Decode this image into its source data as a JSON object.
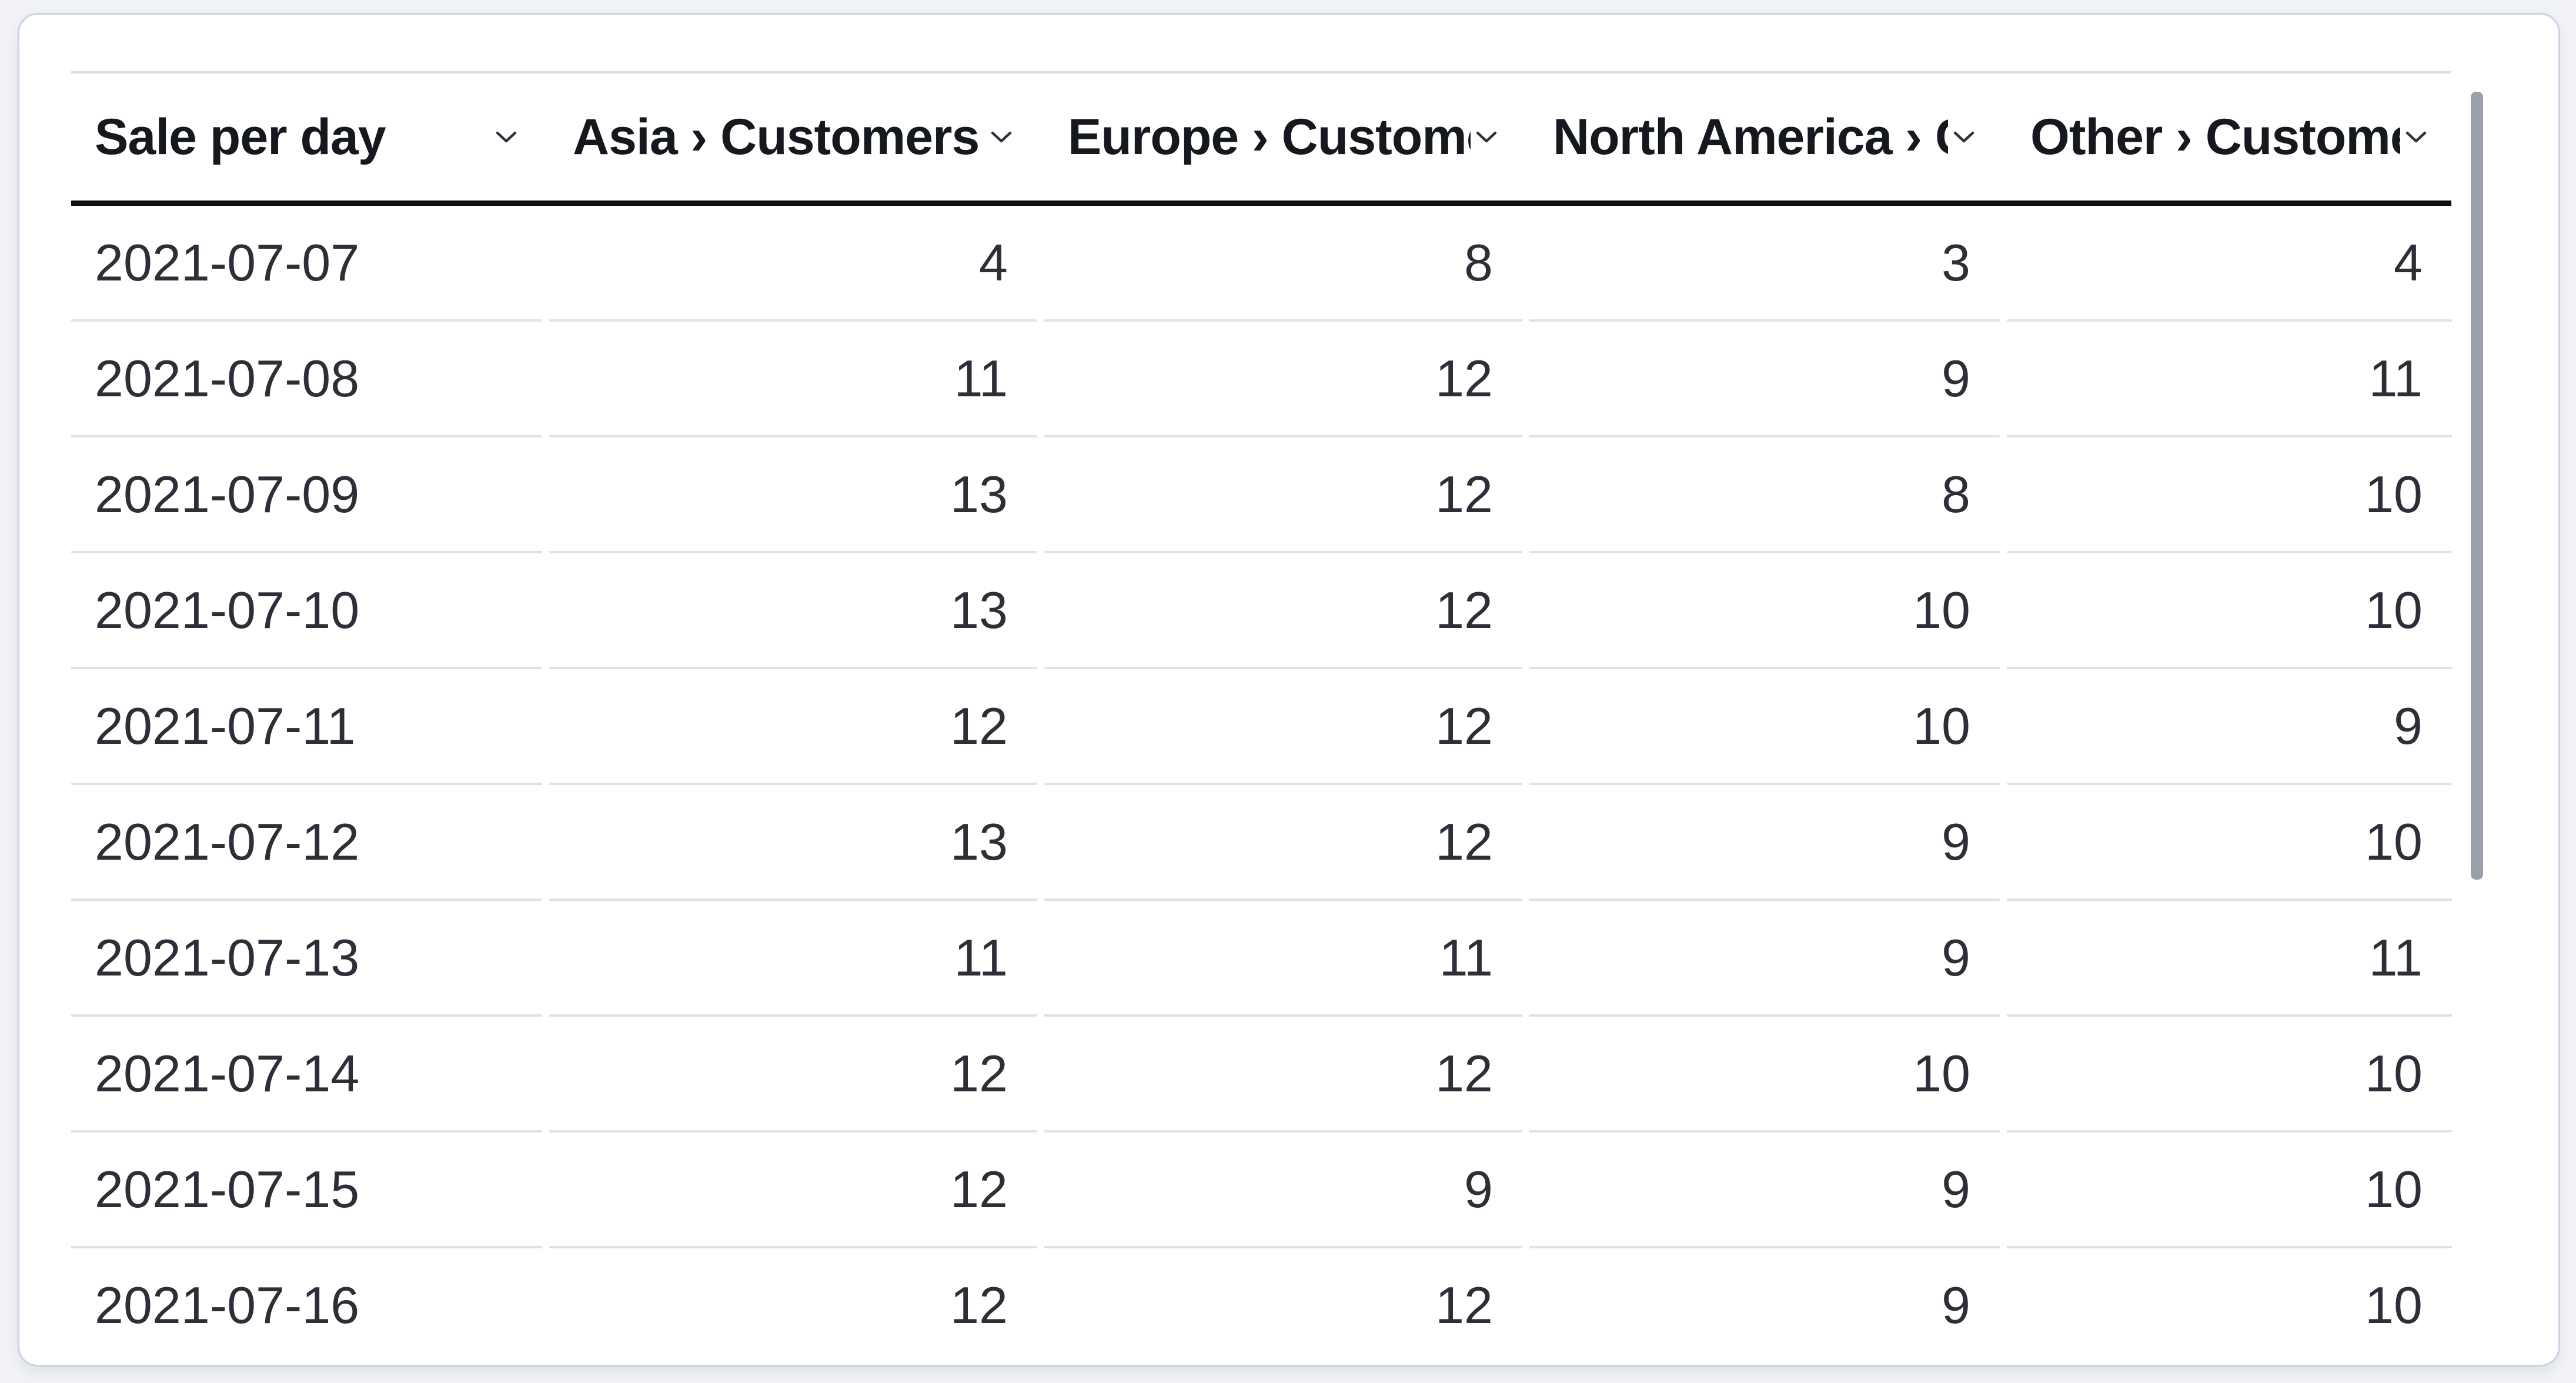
{
  "table": {
    "title": "Sale per day",
    "columns": [
      {
        "id": "sale-per-day",
        "label": "Sale per day",
        "align": "left"
      },
      {
        "id": "asia-customers",
        "label": "Asia › Customers",
        "align": "right"
      },
      {
        "id": "europe-customers",
        "label": "Europe › Customers",
        "align": "right"
      },
      {
        "id": "north-america-customers",
        "label": "North America › Customers",
        "align": "right"
      },
      {
        "id": "other-customers",
        "label": "Other › Customers",
        "align": "right"
      }
    ],
    "rows": [
      [
        "2021-07-07",
        "4",
        "8",
        "3",
        "4"
      ],
      [
        "2021-07-08",
        "11",
        "12",
        "9",
        "11"
      ],
      [
        "2021-07-09",
        "13",
        "12",
        "8",
        "10"
      ],
      [
        "2021-07-10",
        "13",
        "12",
        "10",
        "10"
      ],
      [
        "2021-07-11",
        "12",
        "12",
        "10",
        "9"
      ],
      [
        "2021-07-12",
        "13",
        "12",
        "9",
        "10"
      ],
      [
        "2021-07-13",
        "11",
        "11",
        "9",
        "11"
      ],
      [
        "2021-07-14",
        "12",
        "12",
        "10",
        "10"
      ],
      [
        "2021-07-15",
        "12",
        "9",
        "9",
        "10"
      ],
      [
        "2021-07-16",
        "12",
        "12",
        "9",
        "10"
      ]
    ]
  },
  "icons": {
    "column_menu": "chevron-down-icon"
  },
  "scrollbar": {
    "orientation": "vertical",
    "position": "top"
  },
  "colors": {
    "page_bg": "#f0f2f6",
    "card_bg": "#ffffff",
    "card_border": "#cad3e0",
    "header_rule_top": "#d7dde7",
    "header_rule_bottom": "#0d0f15",
    "row_divider": "#dde3ed",
    "header_text": "#161820",
    "body_text": "#2c2f37",
    "chevron": "#30333d",
    "scrollbar_thumb": "#9aa1ab"
  }
}
